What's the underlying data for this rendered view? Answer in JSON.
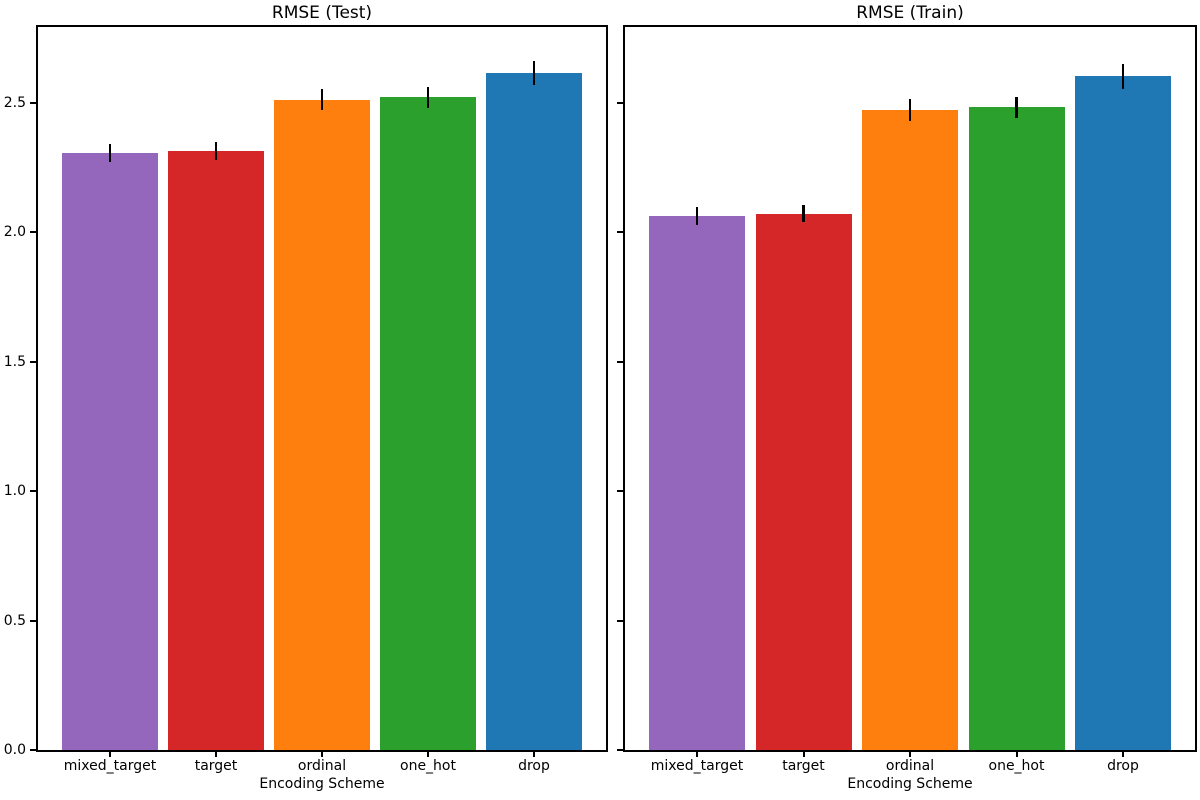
{
  "figure": {
    "background": "#ffffff",
    "text_color": "#000000",
    "spine_color": "#000000"
  },
  "chart_data": [
    {
      "type": "bar",
      "title": "RMSE (Test)",
      "xlabel": "Encoding Scheme",
      "ylabel": "",
      "categories": [
        "mixed_target",
        "target",
        "ordinal",
        "one_hot",
        "drop"
      ],
      "values": [
        2.305,
        2.312,
        2.511,
        2.52,
        2.615
      ],
      "errors": [
        0.035,
        0.034,
        0.041,
        0.039,
        0.046
      ],
      "bar_colors": [
        "#9467bd",
        "#d62728",
        "#ff7f0e",
        "#2ca02c",
        "#1f77b4"
      ],
      "error_bar_color": "#000000",
      "ylim": [
        0,
        2.792
      ],
      "yticks": [
        0.0,
        0.5,
        1.0,
        1.5,
        2.0,
        2.5
      ],
      "show_ytick_labels": true,
      "grid": false,
      "legend": "none"
    },
    {
      "type": "bar",
      "title": "RMSE (Train)",
      "xlabel": "Encoding Scheme",
      "ylabel": "",
      "categories": [
        "mixed_target",
        "target",
        "ordinal",
        "one_hot",
        "drop"
      ],
      "values": [
        2.062,
        2.071,
        2.472,
        2.482,
        2.602
      ],
      "errors": [
        0.035,
        0.033,
        0.042,
        0.04,
        0.048
      ],
      "bar_colors": [
        "#9467bd",
        "#d62728",
        "#ff7f0e",
        "#2ca02c",
        "#1f77b4"
      ],
      "error_bar_color": "#000000",
      "ylim": [
        0,
        2.792
      ],
      "yticks": [
        0.0,
        0.5,
        1.0,
        1.5,
        2.0,
        2.5
      ],
      "show_ytick_labels": false,
      "grid": false,
      "legend": "none"
    }
  ]
}
